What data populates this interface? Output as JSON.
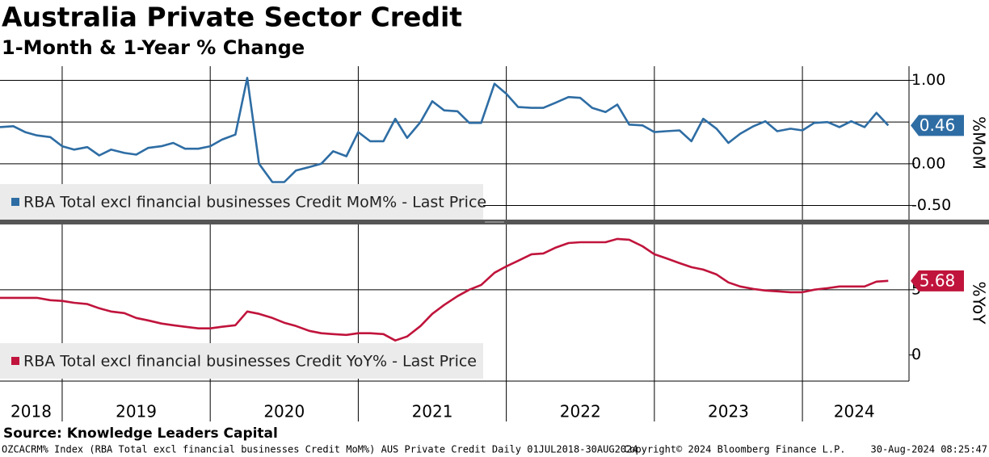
{
  "title": "Australia Private Sector Credit",
  "subtitle": "1-Month & 1-Year % Change",
  "source": "Source: Knowledge Leaders Capital",
  "footer": {
    "left": "OZCACRM% Index (RBA Total excl financial businesses Credit MoM%) AUS Private Credit  Daily 01JUL2018-30AUG2024",
    "center": "Copyright© 2024 Bloomberg Finance L.P.",
    "right": "30-Aug-2024 08:25:47"
  },
  "chart_data": [
    {
      "type": "line",
      "y_label": "%MoM",
      "x": [
        2018.58,
        2018.67,
        2018.75,
        2018.83,
        2018.92,
        2019,
        2019.08,
        2019.17,
        2019.25,
        2019.33,
        2019.42,
        2019.5,
        2019.58,
        2019.67,
        2019.75,
        2019.83,
        2019.92,
        2020,
        2020.08,
        2020.17,
        2020.25,
        2020.33,
        2020.42,
        2020.5,
        2020.58,
        2020.67,
        2020.75,
        2020.83,
        2020.92,
        2021,
        2021.08,
        2021.17,
        2021.25,
        2021.33,
        2021.42,
        2021.5,
        2021.58,
        2021.67,
        2021.75,
        2021.83,
        2021.92,
        2022,
        2022.08,
        2022.17,
        2022.25,
        2022.33,
        2022.42,
        2022.5,
        2022.58,
        2022.67,
        2022.75,
        2022.83,
        2022.92,
        2023,
        2023.08,
        2023.17,
        2023.25,
        2023.33,
        2023.42,
        2023.5,
        2023.58,
        2023.67,
        2023.75,
        2023.83,
        2023.92,
        2024,
        2024.08,
        2024.17,
        2024.25,
        2024.33,
        2024.42,
        2024.5,
        2024.58
      ],
      "xlim": [
        2018.58,
        2024.72
      ],
      "xgrid": [
        2019,
        2020,
        2021,
        2022,
        2023,
        2024
      ],
      "ylim": [
        -0.67,
        1.17
      ],
      "yticks": [
        {
          "value": 1,
          "label": "1.00"
        },
        {
          "value": 0,
          "label": "0.00"
        },
        {
          "value": -0.5,
          "label": "-0.50"
        }
      ],
      "ygrid": [
        1,
        0.5,
        0,
        -0.5
      ],
      "series": [
        {
          "name": "RBA Total excl financial businesses Credit MoM% - Last Price",
          "color": "#2e6da4",
          "values": [
            0.44,
            0.45,
            0.38,
            0.34,
            0.32,
            0.21,
            0.17,
            0.2,
            0.1,
            0.17,
            0.13,
            0.11,
            0.19,
            0.21,
            0.25,
            0.18,
            0.18,
            0.21,
            0.29,
            0.35,
            1.03,
            0.0,
            -0.22,
            -0.22,
            -0.08,
            -0.04,
            0.0,
            0.15,
            0.09,
            0.38,
            0.27,
            0.27,
            0.54,
            0.31,
            0.5,
            0.75,
            0.64,
            0.63,
            0.49,
            0.49,
            0.96,
            0.84,
            0.68,
            0.67,
            0.67,
            0.73,
            0.8,
            0.79,
            0.67,
            0.62,
            0.71,
            0.47,
            0.46,
            0.38,
            0.39,
            0.4,
            0.27,
            0.54,
            0.42,
            0.25,
            0.36,
            0.45,
            0.51,
            0.39,
            0.42,
            0.4,
            0.49,
            0.5,
            0.44,
            0.51,
            0.44,
            0.61,
            0.46
          ]
        }
      ]
    },
    {
      "type": "line",
      "y_label": "%YoY",
      "x": [
        2018.58,
        2018.67,
        2018.75,
        2018.83,
        2018.92,
        2019,
        2019.08,
        2019.17,
        2019.25,
        2019.33,
        2019.42,
        2019.5,
        2019.58,
        2019.67,
        2019.75,
        2019.83,
        2019.92,
        2020,
        2020.08,
        2020.17,
        2020.25,
        2020.33,
        2020.42,
        2020.5,
        2020.58,
        2020.67,
        2020.75,
        2020.83,
        2020.92,
        2021,
        2021.08,
        2021.17,
        2021.25,
        2021.33,
        2021.42,
        2021.5,
        2021.58,
        2021.67,
        2021.75,
        2021.83,
        2021.92,
        2022,
        2022.08,
        2022.17,
        2022.25,
        2022.33,
        2022.42,
        2022.5,
        2022.58,
        2022.67,
        2022.75,
        2022.83,
        2022.92,
        2023,
        2023.08,
        2023.17,
        2023.25,
        2023.33,
        2023.42,
        2023.5,
        2023.58,
        2023.67,
        2023.75,
        2023.83,
        2023.92,
        2024,
        2024.08,
        2024.17,
        2024.25,
        2024.33,
        2024.42,
        2024.5,
        2024.58
      ],
      "xlim": [
        2018.58,
        2024.72
      ],
      "xgrid": [
        2019,
        2020,
        2021,
        2022,
        2023,
        2024
      ],
      "xticks": [
        {
          "value": 2018.79,
          "label": "2018"
        },
        {
          "value": 2019.5,
          "label": "2019"
        },
        {
          "value": 2020.5,
          "label": "2020"
        },
        {
          "value": 2021.5,
          "label": "2021"
        },
        {
          "value": 2022.5,
          "label": "2022"
        },
        {
          "value": 2023.5,
          "label": "2023"
        },
        {
          "value": 2024.35,
          "label": "2024"
        }
      ],
      "ylim": [
        -2,
        10
      ],
      "yticks": [
        0,
        5
      ],
      "ygrid": [
        5
      ],
      "series": [
        {
          "name": "RBA Total excl financial businesses Credit YoY% - Last Price",
          "color": "#c0143c",
          "values": [
            4.38,
            4.38,
            4.38,
            4.38,
            4.2,
            4.14,
            4.0,
            3.9,
            3.58,
            3.33,
            3.21,
            2.84,
            2.65,
            2.41,
            2.28,
            2.16,
            2.04,
            2.04,
            2.16,
            2.28,
            3.33,
            3.15,
            2.84,
            2.47,
            2.22,
            1.85,
            1.67,
            1.6,
            1.54,
            1.67,
            1.67,
            1.6,
            1.11,
            1.42,
            2.22,
            3.15,
            3.83,
            4.51,
            5.0,
            5.37,
            6.3,
            6.79,
            7.22,
            7.72,
            7.78,
            8.21,
            8.58,
            8.64,
            8.64,
            8.64,
            8.89,
            8.83,
            8.33,
            7.72,
            7.41,
            7.04,
            6.73,
            6.54,
            6.17,
            5.56,
            5.25,
            5.06,
            4.94,
            4.88,
            4.81,
            4.81,
            5.0,
            5.12,
            5.25,
            5.25,
            5.25,
            5.62,
            5.68
          ]
        }
      ]
    }
  ]
}
